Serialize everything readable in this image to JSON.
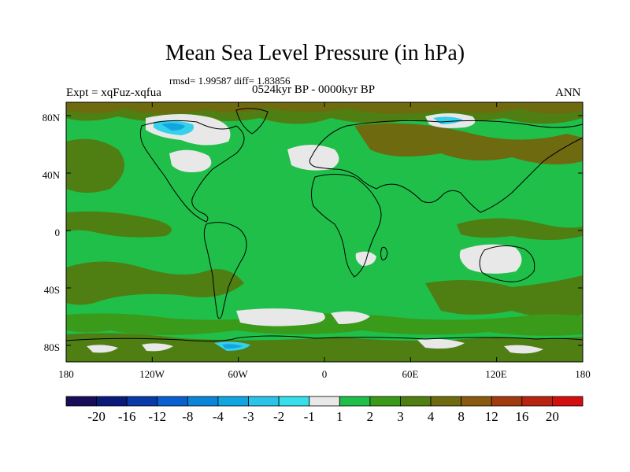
{
  "title": "Mean Sea Level Pressure (in hPa)",
  "stats": "rmsd= 1.99587 diff= 1.83856",
  "experiment": "Expt = xqFuz-xqfua",
  "period": "0524kyr BP - 0000kyr BP",
  "season": "ANN",
  "lat_labels": [
    "80N",
    "40N",
    "0",
    "40S",
    "80S"
  ],
  "lon_labels": [
    "180",
    "120W",
    "60W",
    "0",
    "60E",
    "120E",
    "180"
  ],
  "colorbar": {
    "colors": [
      "#1b0c5a",
      "#0b1a7a",
      "#0a3aa8",
      "#0a5fd0",
      "#0a85d8",
      "#11a6e0",
      "#2bc3e8",
      "#35e0ea",
      "#e8e8e8",
      "#1fbf4a",
      "#3a9a1a",
      "#4f7e12",
      "#6e6a10",
      "#8a5a10",
      "#a23a10",
      "#b82410",
      "#d40f0f"
    ],
    "labels": [
      "-20",
      "-16",
      "-12",
      "-8",
      "-4",
      "-3",
      "-2",
      "-1",
      "1",
      "2",
      "3",
      "4",
      "8",
      "12",
      "16",
      "20"
    ]
  },
  "field_colors": {
    "base": "#1fbf4a",
    "mid_green": "#3a9a1a",
    "olive": "#4f7e12",
    "brown": "#6e6a10",
    "near_zero": "#e8e8e8",
    "light_blue": "#35d0ea",
    "blue": "#11a6e0",
    "coast": "#000000"
  }
}
